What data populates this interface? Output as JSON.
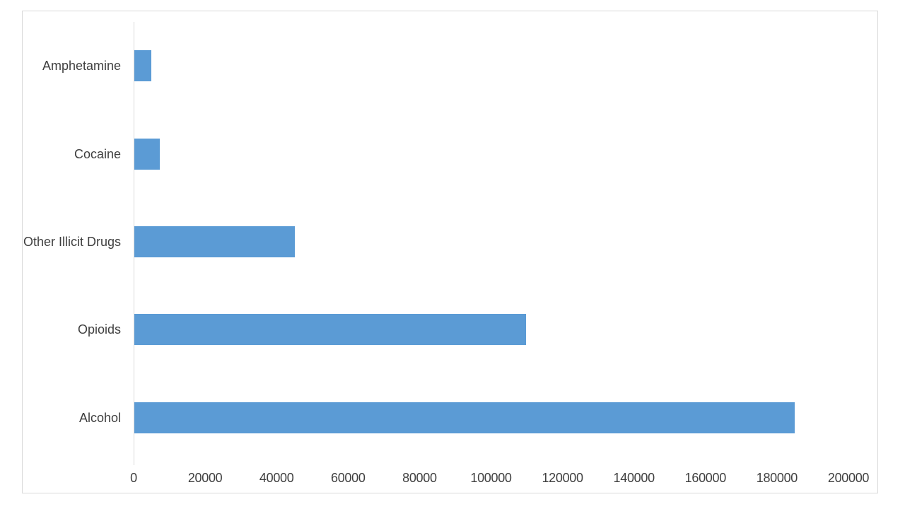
{
  "chart_data": {
    "type": "bar",
    "orientation": "horizontal",
    "title": "",
    "xlabel": "",
    "ylabel": "",
    "categories": [
      "Amphetamine",
      "Cocaine",
      "Other Illicit Drugs",
      "Opioids",
      "Alcohol"
    ],
    "values": [
      4700,
      7100,
      45000,
      109500,
      184700
    ],
    "xlim": [
      0,
      200000
    ],
    "xticks": [
      0,
      20000,
      40000,
      60000,
      80000,
      100000,
      120000,
      140000,
      160000,
      180000,
      200000
    ],
    "grid": false,
    "legend": false,
    "bar_color": "#5B9BD5",
    "axis_line_color": "#D9D9D9",
    "border_color": "#D9D9D9",
    "text_color": "#3F3F3F"
  }
}
